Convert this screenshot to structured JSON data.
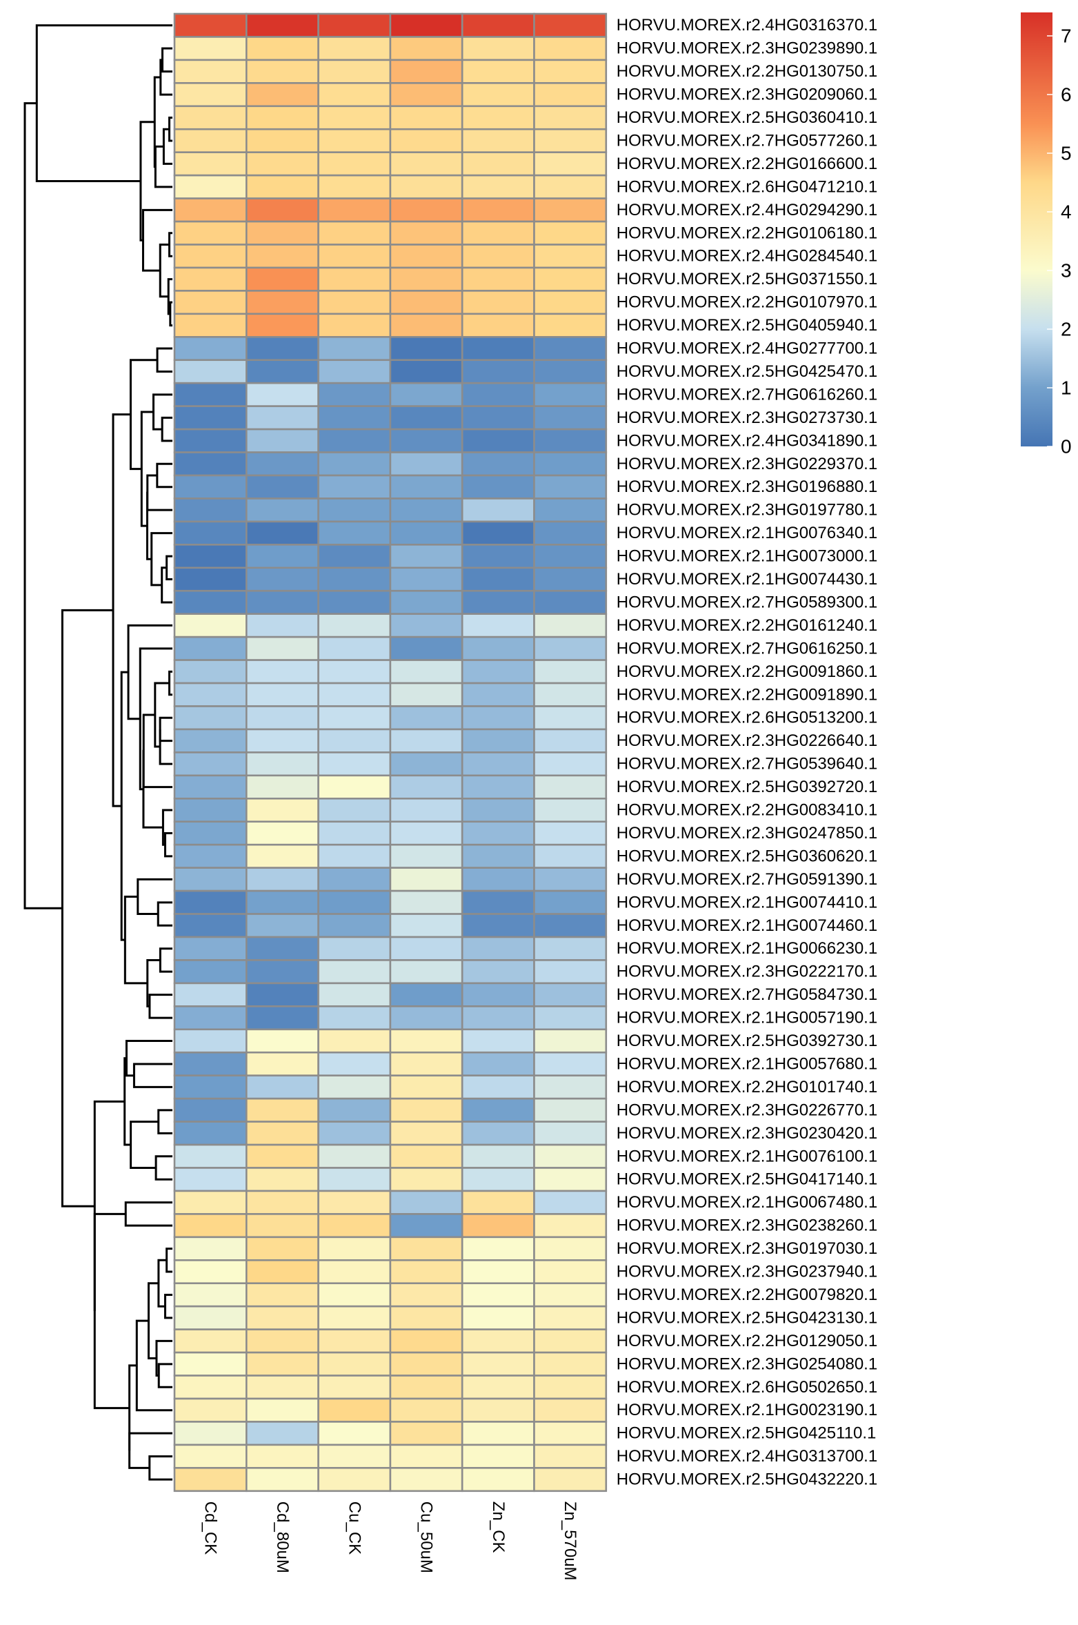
{
  "chart_data": {
    "type": "heatmap",
    "columns": [
      "Cd_CK",
      "Cd_80uM",
      "Cu_CK",
      "Cu_50uM",
      "Zn_CK",
      "Zn_570uM"
    ],
    "rows": [
      "HORVU.MOREX.r2.4HG0316370.1",
      "HORVU.MOREX.r2.3HG0239890.1",
      "HORVU.MOREX.r2.2HG0130750.1",
      "HORVU.MOREX.r2.3HG0209060.1",
      "HORVU.MOREX.r2.5HG0360410.1",
      "HORVU.MOREX.r2.7HG0577260.1",
      "HORVU.MOREX.r2.2HG0166600.1",
      "HORVU.MOREX.r2.6HG0471210.1",
      "HORVU.MOREX.r2.4HG0294290.1",
      "HORVU.MOREX.r2.2HG0106180.1",
      "HORVU.MOREX.r2.4HG0284540.1",
      "HORVU.MOREX.r2.5HG0371550.1",
      "HORVU.MOREX.r2.2HG0107970.1",
      "HORVU.MOREX.r2.5HG0405940.1",
      "HORVU.MOREX.r2.4HG0277700.1",
      "HORVU.MOREX.r2.5HG0425470.1",
      "HORVU.MOREX.r2.7HG0616260.1",
      "HORVU.MOREX.r2.3HG0273730.1",
      "HORVU.MOREX.r2.4HG0341890.1",
      "HORVU.MOREX.r2.3HG0229370.1",
      "HORVU.MOREX.r2.3HG0196880.1",
      "HORVU.MOREX.r2.3HG0197780.1",
      "HORVU.MOREX.r2.1HG0076340.1",
      "HORVU.MOREX.r2.1HG0073000.1",
      "HORVU.MOREX.r2.1HG0074430.1",
      "HORVU.MOREX.r2.7HG0589300.1",
      "HORVU.MOREX.r2.2HG0161240.1",
      "HORVU.MOREX.r2.7HG0616250.1",
      "HORVU.MOREX.r2.2HG0091860.1",
      "HORVU.MOREX.r2.2HG0091890.1",
      "HORVU.MOREX.r2.6HG0513200.1",
      "HORVU.MOREX.r2.3HG0226640.1",
      "HORVU.MOREX.r2.7HG0539640.1",
      "HORVU.MOREX.r2.5HG0392720.1",
      "HORVU.MOREX.r2.2HG0083410.1",
      "HORVU.MOREX.r2.3HG0247850.1",
      "HORVU.MOREX.r2.5HG0360620.1",
      "HORVU.MOREX.r2.7HG0591390.1",
      "HORVU.MOREX.r2.1HG0074410.1",
      "HORVU.MOREX.r2.1HG0074460.1",
      "HORVU.MOREX.r2.1HG0066230.1",
      "HORVU.MOREX.r2.3HG0222170.1",
      "HORVU.MOREX.r2.7HG0584730.1",
      "HORVU.MOREX.r2.1HG0057190.1",
      "HORVU.MOREX.r2.5HG0392730.1",
      "HORVU.MOREX.r2.1HG0057680.1",
      "HORVU.MOREX.r2.2HG0101740.1",
      "HORVU.MOREX.r2.3HG0226770.1",
      "HORVU.MOREX.r2.3HG0230420.1",
      "HORVU.MOREX.r2.1HG0076100.1",
      "HORVU.MOREX.r2.5HG0417140.1",
      "HORVU.MOREX.r2.1HG0067480.1",
      "HORVU.MOREX.r2.3HG0238260.1",
      "HORVU.MOREX.r2.3HG0197030.1",
      "HORVU.MOREX.r2.3HG0237940.1",
      "HORVU.MOREX.r2.2HG0079820.1",
      "HORVU.MOREX.r2.5HG0423130.1",
      "HORVU.MOREX.r2.2HG0129050.1",
      "HORVU.MOREX.r2.3HG0254080.1",
      "HORVU.MOREX.r2.6HG0502650.1",
      "HORVU.MOREX.r2.1HG0023190.1",
      "HORVU.MOREX.r2.5HG0425110.1",
      "HORVU.MOREX.r2.4HG0313700.1",
      "HORVU.MOREX.r2.5HG0432220.1"
    ],
    "values": [
      [
        6.8,
        7.3,
        7.0,
        7.4,
        7.0,
        6.8
      ],
      [
        3.6,
        4.5,
        4.2,
        4.7,
        4.2,
        4.4
      ],
      [
        3.9,
        4.4,
        4.2,
        5.0,
        4.3,
        4.3
      ],
      [
        3.9,
        4.9,
        4.3,
        4.9,
        4.3,
        4.4
      ],
      [
        4.2,
        4.5,
        4.3,
        4.4,
        4.3,
        4.2
      ],
      [
        4.2,
        4.5,
        4.3,
        4.4,
        4.2,
        4.1
      ],
      [
        4.0,
        4.4,
        4.3,
        4.2,
        4.2,
        3.9
      ],
      [
        3.4,
        4.5,
        4.3,
        4.2,
        4.1,
        4.1
      ],
      [
        5.0,
        5.8,
        5.2,
        5.3,
        5.2,
        5.0
      ],
      [
        4.6,
        4.9,
        4.6,
        4.8,
        4.6,
        4.5
      ],
      [
        4.6,
        4.8,
        4.6,
        4.8,
        4.6,
        4.4
      ],
      [
        4.6,
        5.5,
        4.6,
        4.8,
        4.6,
        4.5
      ],
      [
        4.6,
        5.3,
        4.6,
        4.9,
        4.6,
        4.5
      ],
      [
        4.6,
        5.4,
        4.6,
        4.9,
        4.6,
        4.5
      ],
      [
        1.2,
        0.3,
        1.3,
        0.1,
        0.2,
        0.5
      ],
      [
        1.8,
        0.4,
        1.4,
        0.1,
        0.5,
        0.6
      ],
      [
        0.3,
        2.0,
        0.8,
        1.1,
        0.6,
        1.0
      ],
      [
        0.3,
        1.7,
        0.7,
        0.4,
        0.5,
        0.8
      ],
      [
        0.3,
        1.5,
        0.6,
        0.6,
        0.3,
        0.5
      ],
      [
        0.3,
        0.8,
        1.1,
        1.4,
        0.8,
        0.9
      ],
      [
        0.8,
        0.5,
        1.2,
        1.1,
        0.7,
        1.1
      ],
      [
        0.6,
        1.1,
        1.0,
        1.0,
        1.7,
        1.0
      ],
      [
        0.4,
        0.1,
        1.0,
        0.9,
        0.1,
        0.7
      ],
      [
        0.1,
        0.9,
        0.5,
        1.3,
        0.5,
        0.7
      ],
      [
        0.1,
        0.8,
        0.7,
        1.2,
        0.4,
        0.7
      ],
      [
        0.4,
        0.6,
        0.6,
        1.1,
        0.5,
        0.5
      ],
      [
        2.9,
        1.9,
        2.2,
        1.4,
        2.0,
        2.5
      ],
      [
        1.2,
        2.4,
        1.9,
        0.7,
        1.3,
        1.6
      ],
      [
        1.6,
        2.0,
        2.0,
        2.2,
        1.4,
        2.2
      ],
      [
        1.7,
        2.0,
        2.0,
        2.3,
        1.4,
        2.2
      ],
      [
        1.6,
        1.9,
        2.0,
        1.5,
        1.4,
        2.1
      ],
      [
        1.3,
        2.0,
        1.9,
        1.9,
        1.3,
        1.9
      ],
      [
        1.4,
        2.2,
        2.0,
        1.3,
        1.4,
        2.0
      ],
      [
        1.2,
        2.6,
        3.0,
        1.7,
        1.4,
        2.3
      ],
      [
        1.1,
        3.3,
        1.8,
        1.9,
        1.3,
        2.2
      ],
      [
        1.1,
        3.0,
        1.9,
        2.0,
        1.4,
        2.0
      ],
      [
        1.2,
        3.2,
        1.9,
        2.2,
        1.3,
        1.9
      ],
      [
        1.3,
        1.7,
        1.2,
        2.7,
        1.2,
        1.4
      ],
      [
        0.3,
        1.0,
        0.9,
        2.3,
        0.5,
        1.0
      ],
      [
        0.4,
        1.3,
        1.1,
        2.1,
        0.5,
        0.5
      ],
      [
        1.2,
        0.6,
        1.8,
        1.9,
        1.5,
        1.8
      ],
      [
        1.0,
        0.6,
        2.2,
        2.2,
        1.6,
        1.9
      ],
      [
        1.9,
        0.3,
        2.2,
        0.9,
        1.2,
        1.5
      ],
      [
        1.2,
        0.4,
        1.8,
        1.4,
        1.5,
        1.8
      ],
      [
        1.9,
        3.0,
        3.5,
        3.4,
        2.0,
        2.8
      ],
      [
        0.8,
        3.3,
        2.0,
        3.6,
        1.4,
        2.0
      ],
      [
        0.9,
        1.7,
        2.4,
        3.7,
        1.9,
        2.3
      ],
      [
        0.7,
        4.2,
        1.3,
        4.0,
        1.0,
        2.4
      ],
      [
        0.9,
        4.2,
        1.5,
        3.8,
        1.5,
        2.2
      ],
      [
        2.1,
        4.3,
        2.4,
        4.0,
        2.2,
        2.8
      ],
      [
        2.0,
        3.7,
        2.1,
        3.7,
        2.1,
        2.9
      ],
      [
        3.7,
        4.0,
        3.8,
        1.6,
        4.1,
        1.9
      ],
      [
        4.5,
        4.2,
        4.4,
        0.9,
        4.8,
        3.5
      ],
      [
        2.9,
        4.3,
        3.3,
        4.1,
        3.0,
        3.2
      ],
      [
        3.0,
        4.5,
        3.3,
        4.0,
        3.0,
        3.3
      ],
      [
        2.9,
        3.9,
        3.1,
        3.8,
        3.0,
        3.2
      ],
      [
        2.8,
        3.8,
        3.3,
        3.9,
        3.0,
        3.4
      ],
      [
        3.6,
        4.1,
        3.8,
        4.4,
        3.6,
        3.7
      ],
      [
        3.0,
        4.0,
        3.7,
        4.2,
        3.5,
        3.7
      ],
      [
        3.3,
        3.5,
        3.5,
        4.1,
        3.5,
        3.7
      ],
      [
        3.5,
        3.1,
        4.5,
        4.0,
        3.6,
        3.8
      ],
      [
        2.8,
        1.8,
        3.0,
        4.1,
        3.1,
        3.3
      ],
      [
        3.2,
        3.3,
        3.2,
        3.3,
        3.1,
        3.5
      ],
      [
        4.2,
        3.1,
        3.4,
        3.2,
        3.1,
        3.6
      ]
    ],
    "color_scale": {
      "min": 0,
      "max": 7.4,
      "stops": [
        {
          "v": 0.0,
          "c": "#4575b4"
        },
        {
          "v": 1.0,
          "c": "#74a1cc"
        },
        {
          "v": 2.0,
          "c": "#c6dfee"
        },
        {
          "v": 3.0,
          "c": "#fbfbcd"
        },
        {
          "v": 4.5,
          "c": "#fed889"
        },
        {
          "v": 5.5,
          "c": "#f99154"
        },
        {
          "v": 7.4,
          "c": "#d73027"
        }
      ],
      "ticks": [
        0,
        1,
        2,
        3,
        4,
        5,
        6,
        7
      ]
    },
    "cell_border_color": "#8c8c8c",
    "dendrogram": "rows",
    "legend_position": "top-right"
  }
}
